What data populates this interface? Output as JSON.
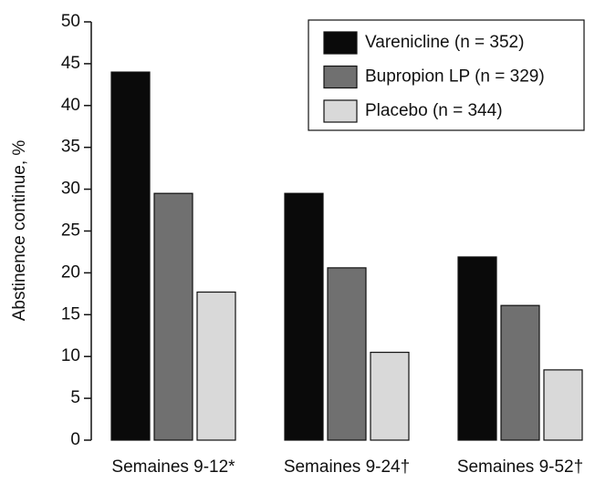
{
  "chart_data": {
    "type": "bar",
    "y_label": "Abstinence continue, %",
    "categories": [
      "Semaines 9-12*",
      "Semaines 9-24†",
      "Semaines 9-52†"
    ],
    "series": [
      {
        "name": "Varenicline (n = 352)",
        "color": "#0a0a0a",
        "values": [
          44,
          29.5,
          21.9
        ]
      },
      {
        "name": "Bupropion LP (n = 329)",
        "color": "#707070",
        "values": [
          29.5,
          20.6,
          16.1
        ]
      },
      {
        "name": "Placebo (n = 344)",
        "color": "#d9d9d9",
        "values": [
          17.7,
          10.5,
          8.4
        ]
      }
    ],
    "ylim": [
      0,
      50
    ],
    "yticks": [
      0,
      5,
      10,
      15,
      20,
      25,
      30,
      35,
      40,
      45,
      50
    ],
    "grid": false,
    "legend": "top-right"
  }
}
